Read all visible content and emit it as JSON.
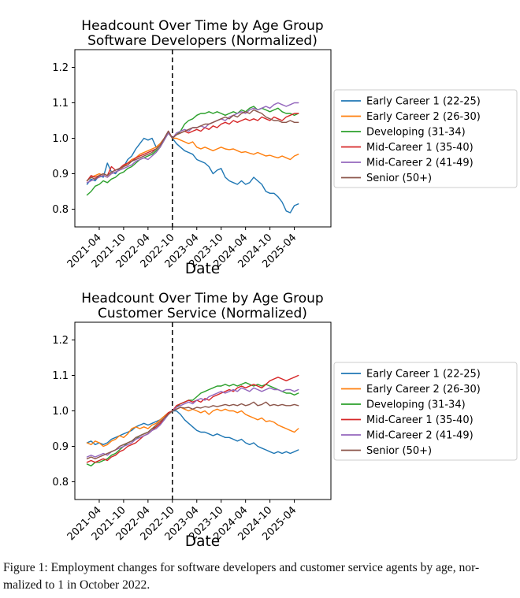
{
  "figure_caption": {
    "lines": [
      "Figure 1: Employment changes for software developers and customer service agents by age, nor-",
      "malized to 1 in October 2022."
    ]
  },
  "colors": {
    "blue": "#1f77b4",
    "orange": "#ff7f0e",
    "green": "#2ca02c",
    "red": "#d62728",
    "purple": "#9467bd",
    "brown": "#8c564b",
    "vline": "#000000",
    "legend_border": "#cccccc"
  },
  "chart_data": [
    {
      "type": "line",
      "title": "Headcount Over Time by Age Group",
      "subtitle": "Software Developers (Normalized)",
      "xlabel": "Date",
      "ylabel": "",
      "grid": false,
      "legend_position": "right of plot",
      "x_start_month": "2021-01",
      "x_end_month": "2025-05",
      "x_ticks": [
        {
          "index": 3,
          "label": "2021-04"
        },
        {
          "index": 9,
          "label": "2021-10"
        },
        {
          "index": 15,
          "label": "2022-04"
        },
        {
          "index": 21,
          "label": "2022-10"
        },
        {
          "index": 27,
          "label": "2023-04"
        },
        {
          "index": 33,
          "label": "2023-10"
        },
        {
          "index": 39,
          "label": "2024-04"
        },
        {
          "index": 45,
          "label": "2024-10"
        },
        {
          "index": 51,
          "label": "2025-04"
        }
      ],
      "xlim_months": [
        -3,
        60
      ],
      "ylim": [
        0.75,
        1.25
      ],
      "y_ticks": [
        0.8,
        0.9,
        1.0,
        1.1,
        1.2
      ],
      "vline": {
        "month": "2022-10",
        "index": 21,
        "style": "dashed",
        "color": "#000000"
      },
      "series": [
        {
          "name": "Early Career 1 (22-25)",
          "color": "#1f77b4",
          "values": [
            0.87,
            0.885,
            0.88,
            0.895,
            0.89,
            0.93,
            0.905,
            0.9,
            0.915,
            0.92,
            0.94,
            0.95,
            0.97,
            0.985,
            1.0,
            0.995,
            1.0,
            0.975,
            0.985,
            1.0,
            1.02,
            1.0,
            0.985,
            0.975,
            0.965,
            0.96,
            0.955,
            0.94,
            0.935,
            0.93,
            0.92,
            0.9,
            0.91,
            0.915,
            0.89,
            0.88,
            0.875,
            0.87,
            0.88,
            0.87,
            0.875,
            0.89,
            0.88,
            0.87,
            0.85,
            0.845,
            0.845,
            0.835,
            0.82,
            0.795,
            0.79,
            0.81,
            0.815
          ]
        },
        {
          "name": "Early Career 2 (26-30)",
          "color": "#ff7f0e",
          "values": [
            0.88,
            0.89,
            0.895,
            0.9,
            0.895,
            0.89,
            0.9,
            0.905,
            0.91,
            0.92,
            0.93,
            0.94,
            0.945,
            0.955,
            0.96,
            0.965,
            0.97,
            0.975,
            0.985,
            1.0,
            1.015,
            1.0,
            1.0,
            0.995,
            0.99,
            0.985,
            0.99,
            0.975,
            0.97,
            0.975,
            0.97,
            0.965,
            0.97,
            0.975,
            0.97,
            0.968,
            0.97,
            0.965,
            0.96,
            0.962,
            0.958,
            0.955,
            0.96,
            0.955,
            0.95,
            0.952,
            0.948,
            0.945,
            0.95,
            0.945,
            0.94,
            0.95,
            0.955
          ]
        },
        {
          "name": "Developing (31-34)",
          "color": "#2ca02c",
          "values": [
            0.84,
            0.85,
            0.865,
            0.87,
            0.88,
            0.875,
            0.885,
            0.89,
            0.9,
            0.905,
            0.915,
            0.92,
            0.93,
            0.94,
            0.945,
            0.95,
            0.955,
            0.965,
            0.975,
            0.995,
            1.015,
            1.0,
            1.01,
            1.02,
            1.04,
            1.05,
            1.055,
            1.065,
            1.07,
            1.07,
            1.075,
            1.07,
            1.075,
            1.07,
            1.065,
            1.07,
            1.075,
            1.07,
            1.08,
            1.075,
            1.085,
            1.09,
            1.08,
            1.085,
            1.08,
            1.075,
            1.08,
            1.085,
            1.075,
            1.07,
            1.07,
            1.065,
            1.07
          ]
        },
        {
          "name": "Mid-Career 1 (35-40)",
          "color": "#d62728",
          "values": [
            0.88,
            0.895,
            0.89,
            0.895,
            0.9,
            0.895,
            0.92,
            0.91,
            0.915,
            0.925,
            0.93,
            0.935,
            0.945,
            0.95,
            0.955,
            0.96,
            0.965,
            0.97,
            0.98,
            1.0,
            1.02,
            1.0,
            1.01,
            1.015,
            1.02,
            1.015,
            1.02,
            1.025,
            1.02,
            1.03,
            1.025,
            1.035,
            1.03,
            1.04,
            1.045,
            1.04,
            1.05,
            1.045,
            1.05,
            1.055,
            1.05,
            1.055,
            1.05,
            1.06,
            1.055,
            1.05,
            1.06,
            1.055,
            1.05,
            1.06,
            1.065,
            1.07,
            1.07
          ]
        },
        {
          "name": "Mid-Career 2 (41-49)",
          "color": "#9467bd",
          "values": [
            0.875,
            0.88,
            0.885,
            0.89,
            0.895,
            0.89,
            0.9,
            0.905,
            0.91,
            0.915,
            0.92,
            0.925,
            0.935,
            0.94,
            0.945,
            0.94,
            0.95,
            0.96,
            0.975,
            0.995,
            1.015,
            1.0,
            1.015,
            1.02,
            1.025,
            1.02,
            1.03,
            1.03,
            1.035,
            1.03,
            1.04,
            1.045,
            1.05,
            1.055,
            1.05,
            1.06,
            1.065,
            1.07,
            1.075,
            1.07,
            1.08,
            1.085,
            1.08,
            1.085,
            1.09,
            1.085,
            1.095,
            1.1,
            1.095,
            1.09,
            1.095,
            1.1,
            1.1
          ]
        },
        {
          "name": "Senior (50+)",
          "color": "#8c564b",
          "values": [
            0.88,
            0.89,
            0.885,
            0.895,
            0.9,
            0.895,
            0.905,
            0.91,
            0.915,
            0.92,
            0.925,
            0.935,
            0.94,
            0.945,
            0.95,
            0.955,
            0.96,
            0.97,
            0.98,
            1.0,
            1.02,
            1.0,
            1.01,
            1.015,
            1.02,
            1.025,
            1.03,
            1.03,
            1.035,
            1.04,
            1.04,
            1.045,
            1.05,
            1.055,
            1.06,
            1.055,
            1.065,
            1.06,
            1.07,
            1.075,
            1.07,
            1.08,
            1.075,
            1.07,
            1.06,
            1.055,
            1.05,
            1.05,
            1.045,
            1.045,
            1.05,
            1.045,
            1.045
          ]
        }
      ]
    },
    {
      "type": "line",
      "title": "Headcount Over Time by Age Group",
      "subtitle": "Customer Service (Normalized)",
      "xlabel": "Date",
      "ylabel": "",
      "grid": false,
      "legend_position": "right of plot",
      "x_start_month": "2021-01",
      "x_end_month": "2025-05",
      "x_ticks": [
        {
          "index": 3,
          "label": "2021-04"
        },
        {
          "index": 9,
          "label": "2021-10"
        },
        {
          "index": 15,
          "label": "2022-04"
        },
        {
          "index": 21,
          "label": "2022-10"
        },
        {
          "index": 27,
          "label": "2023-04"
        },
        {
          "index": 33,
          "label": "2023-10"
        },
        {
          "index": 39,
          "label": "2024-04"
        },
        {
          "index": 45,
          "label": "2024-10"
        },
        {
          "index": 51,
          "label": "2025-04"
        }
      ],
      "xlim_months": [
        -3,
        60
      ],
      "ylim": [
        0.75,
        1.25
      ],
      "y_ticks": [
        0.8,
        0.9,
        1.0,
        1.1,
        1.2
      ],
      "vline": {
        "month": "2022-10",
        "index": 21,
        "style": "dashed",
        "color": "#000000"
      },
      "series": [
        {
          "name": "Early Career 1 (22-25)",
          "color": "#1f77b4",
          "values": [
            0.91,
            0.915,
            0.905,
            0.91,
            0.905,
            0.91,
            0.92,
            0.925,
            0.93,
            0.935,
            0.94,
            0.945,
            0.955,
            0.96,
            0.965,
            0.96,
            0.965,
            0.97,
            0.975,
            0.985,
            0.995,
            1.0,
            1.0,
            0.99,
            0.975,
            0.965,
            0.955,
            0.945,
            0.94,
            0.94,
            0.935,
            0.93,
            0.935,
            0.93,
            0.925,
            0.925,
            0.92,
            0.915,
            0.92,
            0.91,
            0.905,
            0.91,
            0.9,
            0.895,
            0.89,
            0.885,
            0.88,
            0.885,
            0.88,
            0.885,
            0.88,
            0.885,
            0.89
          ]
        },
        {
          "name": "Early Career 2 (26-30)",
          "color": "#ff7f0e",
          "values": [
            0.91,
            0.905,
            0.915,
            0.91,
            0.9,
            0.905,
            0.915,
            0.92,
            0.93,
            0.925,
            0.935,
            0.95,
            0.955,
            0.95,
            0.955,
            0.95,
            0.96,
            0.965,
            0.975,
            0.985,
            0.995,
            1.0,
            1.005,
            1.01,
            1.005,
            1.0,
            1.005,
            1.0,
            0.995,
            1.0,
            0.99,
            1.0,
            1.005,
            1.0,
            1.005,
            1.0,
            1.0,
            0.995,
            1.0,
            0.99,
            0.985,
            0.98,
            0.975,
            0.98,
            0.97,
            0.972,
            0.968,
            0.96,
            0.955,
            0.95,
            0.945,
            0.94,
            0.95
          ]
        },
        {
          "name": "Developing (31-34)",
          "color": "#2ca02c",
          "values": [
            0.85,
            0.845,
            0.855,
            0.855,
            0.86,
            0.865,
            0.875,
            0.88,
            0.89,
            0.9,
            0.91,
            0.915,
            0.92,
            0.93,
            0.935,
            0.94,
            0.95,
            0.955,
            0.965,
            0.975,
            0.99,
            1.0,
            1.01,
            1.02,
            1.025,
            1.03,
            1.03,
            1.04,
            1.05,
            1.055,
            1.06,
            1.065,
            1.07,
            1.07,
            1.075,
            1.07,
            1.075,
            1.07,
            1.075,
            1.08,
            1.075,
            1.07,
            1.075,
            1.07,
            1.075,
            1.07,
            1.065,
            1.06,
            1.055,
            1.05,
            1.05,
            1.045,
            1.05
          ]
        },
        {
          "name": "Mid-Career 1 (35-40)",
          "color": "#d62728",
          "values": [
            0.855,
            0.86,
            0.855,
            0.86,
            0.865,
            0.86,
            0.87,
            0.875,
            0.885,
            0.89,
            0.9,
            0.905,
            0.91,
            0.92,
            0.93,
            0.935,
            0.945,
            0.955,
            0.965,
            0.98,
            0.995,
            1.0,
            1.015,
            1.02,
            1.025,
            1.03,
            1.025,
            1.03,
            1.025,
            1.035,
            1.03,
            1.04,
            1.045,
            1.05,
            1.055,
            1.06,
            1.055,
            1.065,
            1.07,
            1.065,
            1.07,
            1.075,
            1.07,
            1.065,
            1.075,
            1.085,
            1.09,
            1.095,
            1.09,
            1.085,
            1.09,
            1.095,
            1.1
          ]
        },
        {
          "name": "Mid-Career 2 (41-49)",
          "color": "#9467bd",
          "values": [
            0.87,
            0.875,
            0.87,
            0.875,
            0.88,
            0.875,
            0.885,
            0.89,
            0.895,
            0.9,
            0.905,
            0.91,
            0.92,
            0.925,
            0.93,
            0.935,
            0.945,
            0.95,
            0.96,
            0.975,
            0.99,
            1.0,
            1.01,
            1.015,
            1.02,
            1.025,
            1.02,
            1.03,
            1.035,
            1.03,
            1.04,
            1.045,
            1.05,
            1.055,
            1.05,
            1.055,
            1.06,
            1.055,
            1.065,
            1.06,
            1.055,
            1.065,
            1.06,
            1.055,
            1.06,
            1.065,
            1.06,
            1.06,
            1.055,
            1.06,
            1.06,
            1.055,
            1.06
          ]
        },
        {
          "name": "Senior (50+)",
          "color": "#8c564b",
          "values": [
            0.865,
            0.87,
            0.865,
            0.87,
            0.875,
            0.88,
            0.885,
            0.89,
            0.9,
            0.905,
            0.91,
            0.915,
            0.925,
            0.93,
            0.935,
            0.94,
            0.95,
            0.96,
            0.97,
            0.98,
            0.99,
            1.0,
            1.005,
            1.01,
            1.008,
            1.01,
            1.005,
            1.01,
            1.008,
            1.012,
            1.01,
            1.015,
            1.012,
            1.015,
            1.018,
            1.015,
            1.018,
            1.015,
            1.02,
            1.015,
            1.018,
            1.025,
            1.015,
            1.018,
            1.025,
            1.015,
            1.018,
            1.015,
            1.018,
            1.015,
            1.015,
            1.018,
            1.015
          ]
        }
      ]
    }
  ]
}
